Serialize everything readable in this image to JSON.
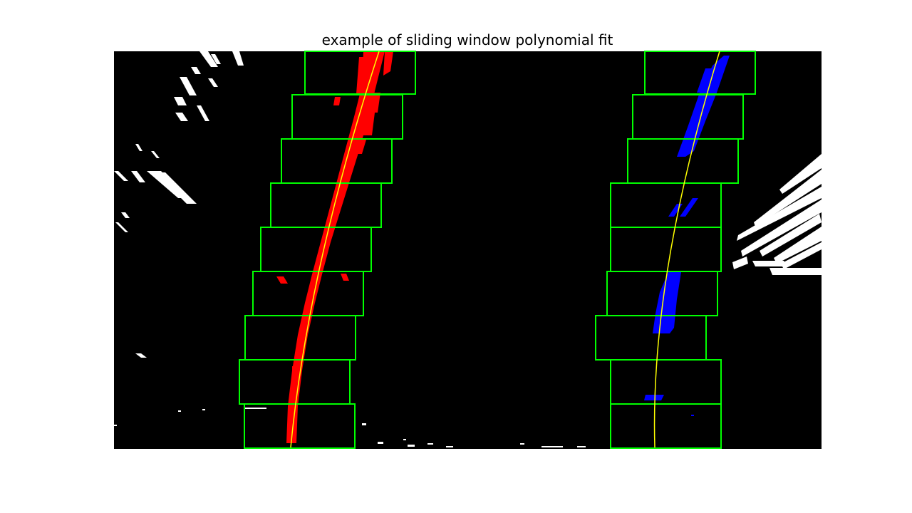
{
  "figure": {
    "title": "example of sliding window polynomial fit"
  },
  "colors": {
    "background": "#000000",
    "window_box": "#00ff00",
    "left_lane_pixels": "#ff0000",
    "right_lane_pixels": "#0000ff",
    "fit_line": "#ffff00",
    "noise_pixels": "#ffffff"
  },
  "sliding_window": {
    "window_count": 9
  }
}
